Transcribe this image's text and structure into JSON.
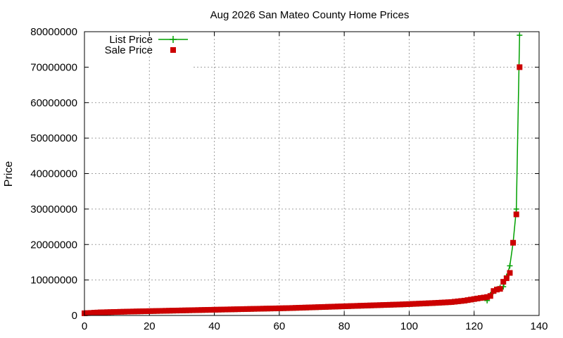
{
  "chart_data": {
    "type": "line",
    "title": "Aug 2026 San Mateo County Home Prices",
    "xlabel": "",
    "ylabel": "Price",
    "xlim": [
      0,
      140
    ],
    "ylim": [
      0,
      80000000
    ],
    "x_ticks": [
      0,
      20,
      40,
      60,
      80,
      100,
      120,
      140
    ],
    "y_ticks": [
      0,
      10000000,
      20000000,
      30000000,
      40000000,
      50000000,
      60000000,
      70000000,
      80000000
    ],
    "x_tick_labels": [
      "0",
      "20",
      "40",
      "60",
      "80",
      "100",
      "120",
      "140"
    ],
    "y_tick_labels": [
      "0",
      "10000000",
      "20000000",
      "30000000",
      "40000000",
      "50000000",
      "60000000",
      "70000000",
      "80000000"
    ],
    "grid": true,
    "legend_position": "top-left",
    "colors": {
      "list": "#00a000",
      "sale": "#cc0000"
    },
    "series": [
      {
        "name": "List Price",
        "style": "line-plus",
        "x": [
          0,
          1,
          2,
          3,
          4,
          5,
          6,
          7,
          8,
          9,
          10,
          11,
          12,
          13,
          14,
          15,
          16,
          17,
          18,
          19,
          20,
          21,
          22,
          23,
          24,
          25,
          26,
          27,
          28,
          29,
          30,
          31,
          32,
          33,
          34,
          35,
          36,
          37,
          38,
          39,
          40,
          41,
          42,
          43,
          44,
          45,
          46,
          47,
          48,
          49,
          50,
          51,
          52,
          53,
          54,
          55,
          56,
          57,
          58,
          59,
          60,
          61,
          62,
          63,
          64,
          65,
          66,
          67,
          68,
          69,
          70,
          71,
          72,
          73,
          74,
          75,
          76,
          77,
          78,
          79,
          80,
          81,
          82,
          83,
          84,
          85,
          86,
          87,
          88,
          89,
          90,
          91,
          92,
          93,
          94,
          95,
          96,
          97,
          98,
          99,
          100,
          101,
          102,
          103,
          104,
          105,
          106,
          107,
          108,
          109,
          110,
          111,
          112,
          113,
          114,
          115,
          116,
          117,
          118,
          119,
          120,
          121,
          122,
          123,
          124,
          125,
          126,
          127,
          128,
          129,
          130,
          131,
          132,
          133,
          134
        ],
        "values": [
          600000,
          650000,
          700000,
          750000,
          800000,
          850000,
          880000,
          900000,
          920000,
          950000,
          980000,
          1000000,
          1020000,
          1050000,
          1070000,
          1090000,
          1110000,
          1130000,
          1150000,
          1170000,
          1190000,
          1210000,
          1230000,
          1250000,
          1270000,
          1290000,
          1310000,
          1330000,
          1350000,
          1370000,
          1390000,
          1410000,
          1430000,
          1450000,
          1470000,
          1490000,
          1510000,
          1530000,
          1550000,
          1570000,
          1590000,
          1610000,
          1630000,
          1650000,
          1670000,
          1690000,
          1710000,
          1730000,
          1750000,
          1770000,
          1790000,
          1810000,
          1830000,
          1850000,
          1870000,
          1890000,
          1910000,
          1930000,
          1950000,
          1970000,
          1990000,
          2010000,
          2030000,
          2050000,
          2080000,
          2110000,
          2140000,
          2170000,
          2200000,
          2230000,
          2260000,
          2290000,
          2320000,
          2350000,
          2380000,
          2410000,
          2440000,
          2470000,
          2500000,
          2530000,
          2560000,
          2590000,
          2620000,
          2650000,
          2680000,
          2710000,
          2740000,
          2770000,
          2800000,
          2830000,
          2860000,
          2890000,
          2920000,
          2950000,
          2980000,
          3010000,
          3040000,
          3070000,
          3100000,
          3140000,
          3180000,
          3220000,
          3260000,
          3300000,
          3340000,
          3380000,
          3420000,
          3460000,
          3500000,
          3550000,
          3600000,
          3650000,
          3700000,
          3750000,
          3850000,
          3950000,
          4050000,
          4150000,
          4300000,
          4450000,
          4600000,
          4750000,
          4900000,
          5000000,
          4200000,
          5800000,
          6800000,
          7400000,
          7900000,
          8100000,
          11000000,
          14000000,
          20500000,
          30000000,
          79000000
        ],
        "extra_points": []
      },
      {
        "name": "Sale Price",
        "style": "square",
        "x": [
          0,
          1,
          2,
          3,
          4,
          5,
          6,
          7,
          8,
          9,
          10,
          11,
          12,
          13,
          14,
          15,
          16,
          17,
          18,
          19,
          20,
          21,
          22,
          23,
          24,
          25,
          26,
          27,
          28,
          29,
          30,
          31,
          32,
          33,
          34,
          35,
          36,
          37,
          38,
          39,
          40,
          41,
          42,
          43,
          44,
          45,
          46,
          47,
          48,
          49,
          50,
          51,
          52,
          53,
          54,
          55,
          56,
          57,
          58,
          59,
          60,
          61,
          62,
          63,
          64,
          65,
          66,
          67,
          68,
          69,
          70,
          71,
          72,
          73,
          74,
          75,
          76,
          77,
          78,
          79,
          80,
          81,
          82,
          83,
          84,
          85,
          86,
          87,
          88,
          89,
          90,
          91,
          92,
          93,
          94,
          95,
          96,
          97,
          98,
          99,
          100,
          101,
          102,
          103,
          104,
          105,
          106,
          107,
          108,
          109,
          110,
          111,
          112,
          113,
          114,
          115,
          116,
          117,
          118,
          119,
          120,
          121,
          122,
          123,
          124,
          125,
          126,
          127,
          128,
          129,
          130,
          131,
          132,
          133,
          134
        ],
        "values": [
          620000,
          680000,
          720000,
          780000,
          830000,
          880000,
          900000,
          930000,
          950000,
          980000,
          1000000,
          1030000,
          1050000,
          1080000,
          1100000,
          1120000,
          1140000,
          1160000,
          1180000,
          1200000,
          1220000,
          1240000,
          1260000,
          1280000,
          1300000,
          1320000,
          1340000,
          1360000,
          1380000,
          1400000,
          1420000,
          1440000,
          1460000,
          1480000,
          1500000,
          1520000,
          1540000,
          1560000,
          1580000,
          1600000,
          1620000,
          1640000,
          1660000,
          1680000,
          1700000,
          1720000,
          1740000,
          1760000,
          1780000,
          1800000,
          1820000,
          1840000,
          1860000,
          1880000,
          1900000,
          1920000,
          1940000,
          1960000,
          1980000,
          2000000,
          2020000,
          2040000,
          2060000,
          2080000,
          2110000,
          2140000,
          2170000,
          2200000,
          2230000,
          2260000,
          2290000,
          2320000,
          2350000,
          2380000,
          2410000,
          2440000,
          2470000,
          2500000,
          2530000,
          2560000,
          2590000,
          2620000,
          2650000,
          2680000,
          2710000,
          2740000,
          2770000,
          2800000,
          2830000,
          2860000,
          2890000,
          2920000,
          2950000,
          2980000,
          3010000,
          3040000,
          3070000,
          3100000,
          3130000,
          3170000,
          3210000,
          3250000,
          3290000,
          3330000,
          3370000,
          3410000,
          3450000,
          3490000,
          3530000,
          3580000,
          3630000,
          3680000,
          3730000,
          3780000,
          3880000,
          3980000,
          4080000,
          4180000,
          4330000,
          4480000,
          4630000,
          4780000,
          4930000,
          5050000,
          5200000,
          5500000,
          6900000,
          7300000,
          7500000,
          9500000,
          10500000,
          12000000,
          20500000,
          28500000,
          70000000
        ]
      }
    ]
  }
}
